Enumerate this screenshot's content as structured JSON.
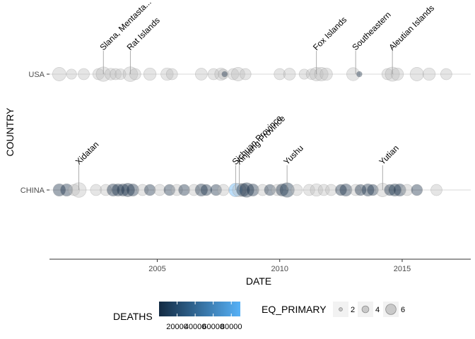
{
  "chart_data": {
    "type": "scatter",
    "title": "",
    "xlabel": "DATE",
    "ylabel": "COUNTRY",
    "xlim": [
      2000.6,
      2017.8
    ],
    "x_ticks": [
      "2005",
      "2010",
      "2015"
    ],
    "x_tick_values": [
      2005,
      2010,
      2015
    ],
    "y_categories": [
      "USA",
      "CHINA"
    ],
    "grid": true,
    "legend_position": "bottom",
    "colors": {
      "low": "#132B43",
      "high": "#56B1F7",
      "grid": "#d9d9d9",
      "neutral_point": "#bebebe"
    },
    "legend": {
      "color_title": "DEATHS",
      "color_breaks": [
        "20000",
        "40000",
        "60000",
        "80000"
      ],
      "color_break_values": [
        20000,
        40000,
        60000,
        80000
      ],
      "color_range": [
        1,
        90000
      ],
      "size_title": "EQ_PRIMARY",
      "size_breaks": [
        "2",
        "4",
        "6"
      ],
      "size_break_values": [
        2,
        4,
        6
      ]
    },
    "annotations": [
      {
        "country": "USA",
        "x": 2002.8,
        "text": "Slana, Mentasta..."
      },
      {
        "country": "USA",
        "x": 2003.9,
        "text": "Rat Islands"
      },
      {
        "country": "USA",
        "x": 2011.5,
        "text": "Fox Islands"
      },
      {
        "country": "USA",
        "x": 2013.1,
        "text": "Southeastern"
      },
      {
        "country": "USA",
        "x": 2014.6,
        "text": "Aleutian Islands"
      },
      {
        "country": "CHINA",
        "x": 2001.8,
        "text": "Xidatan"
      },
      {
        "country": "CHINA",
        "x": 2008.2,
        "text": "Sichuan Province"
      },
      {
        "country": "CHINA",
        "x": 2008.35,
        "text": "Xinjiang Province"
      },
      {
        "country": "CHINA",
        "x": 2010.3,
        "text": "Yushu"
      },
      {
        "country": "CHINA",
        "x": 2014.2,
        "text": "Yutian"
      }
    ],
    "series": [
      {
        "country": "USA",
        "points": [
          {
            "x": 2001.0,
            "size": 6.0,
            "deaths": null
          },
          {
            "x": 2001.5,
            "size": 4.5,
            "deaths": null
          },
          {
            "x": 2002.0,
            "size": 5.0,
            "deaths": null
          },
          {
            "x": 2002.6,
            "size": 5.0,
            "deaths": null
          },
          {
            "x": 2002.8,
            "size": 6.4,
            "deaths": null
          },
          {
            "x": 2003.1,
            "size": 5.2,
            "deaths": null
          },
          {
            "x": 2003.3,
            "size": 5.0,
            "deaths": null
          },
          {
            "x": 2003.5,
            "size": 4.8,
            "deaths": null
          },
          {
            "x": 2003.9,
            "size": 6.5,
            "deaths": null
          },
          {
            "x": 2004.1,
            "size": 5.0,
            "deaths": null
          },
          {
            "x": 2004.7,
            "size": 5.5,
            "deaths": null
          },
          {
            "x": 2005.4,
            "size": 5.5,
            "deaths": null
          },
          {
            "x": 2005.6,
            "size": 5.0,
            "deaths": null
          },
          {
            "x": 2006.8,
            "size": 5.3,
            "deaths": null
          },
          {
            "x": 2007.3,
            "size": 5.0,
            "deaths": null
          },
          {
            "x": 2007.6,
            "size": 5.5,
            "deaths": null
          },
          {
            "x": 2007.7,
            "size": 4.5,
            "deaths": null
          },
          {
            "x": 2007.75,
            "size": 2.5,
            "deaths": 1
          },
          {
            "x": 2008.1,
            "size": 5.0,
            "deaths": null
          },
          {
            "x": 2008.3,
            "size": 6.0,
            "deaths": null
          },
          {
            "x": 2008.6,
            "size": 5.0,
            "deaths": null
          },
          {
            "x": 2010.0,
            "size": 5.0,
            "deaths": null
          },
          {
            "x": 2010.4,
            "size": 5.3,
            "deaths": null
          },
          {
            "x": 2011.0,
            "size": 4.5,
            "deaths": null
          },
          {
            "x": 2011.3,
            "size": 4.8,
            "deaths": null
          },
          {
            "x": 2011.5,
            "size": 6.0,
            "deaths": null
          },
          {
            "x": 2011.7,
            "size": 6.0,
            "deaths": null
          },
          {
            "x": 2011.9,
            "size": 5.5,
            "deaths": null
          },
          {
            "x": 2013.0,
            "size": 5.8,
            "deaths": null
          },
          {
            "x": 2013.25,
            "size": 2.5,
            "deaths": 5
          },
          {
            "x": 2014.4,
            "size": 5.0,
            "deaths": null
          },
          {
            "x": 2014.6,
            "size": 6.3,
            "deaths": null
          },
          {
            "x": 2014.8,
            "size": 5.5,
            "deaths": null
          },
          {
            "x": 2015.6,
            "size": 6.0,
            "deaths": null
          },
          {
            "x": 2016.1,
            "size": 5.5,
            "deaths": null
          },
          {
            "x": 2016.8,
            "size": 5.0,
            "deaths": null
          }
        ]
      },
      {
        "country": "CHINA",
        "points": [
          {
            "x": 2001.0,
            "size": 5.5,
            "deaths": 1
          },
          {
            "x": 2001.3,
            "size": 5.5,
            "deaths": 2
          },
          {
            "x": 2001.6,
            "size": 5.0,
            "deaths": null
          },
          {
            "x": 2001.8,
            "size": 6.5,
            "deaths": null
          },
          {
            "x": 2002.5,
            "size": 5.0,
            "deaths": null
          },
          {
            "x": 2002.9,
            "size": 5.0,
            "deaths": null
          },
          {
            "x": 2003.2,
            "size": 5.5,
            "deaths": 3
          },
          {
            "x": 2003.4,
            "size": 5.5,
            "deaths": 2
          },
          {
            "x": 2003.6,
            "size": 5.5,
            "deaths": 1
          },
          {
            "x": 2003.8,
            "size": 6.0,
            "deaths": 10
          },
          {
            "x": 2004.0,
            "size": 5.5,
            "deaths": 5
          },
          {
            "x": 2004.4,
            "size": 5.0,
            "deaths": null
          },
          {
            "x": 2004.7,
            "size": 5.0,
            "deaths": 2
          },
          {
            "x": 2005.1,
            "size": 5.0,
            "deaths": null
          },
          {
            "x": 2005.5,
            "size": 5.0,
            "deaths": 4
          },
          {
            "x": 2005.8,
            "size": 5.0,
            "deaths": null
          },
          {
            "x": 2006.1,
            "size": 5.0,
            "deaths": 1
          },
          {
            "x": 2006.5,
            "size": 5.0,
            "deaths": null
          },
          {
            "x": 2006.8,
            "size": 5.5,
            "deaths": 2
          },
          {
            "x": 2007.0,
            "size": 5.0,
            "deaths": 3
          },
          {
            "x": 2007.4,
            "size": 5.0,
            "deaths": 1
          },
          {
            "x": 2007.7,
            "size": 5.0,
            "deaths": null
          },
          {
            "x": 2008.2,
            "size": 6.0,
            "deaths": 87587
          },
          {
            "x": 2008.35,
            "size": 6.0,
            "deaths": null
          },
          {
            "x": 2008.5,
            "size": 5.8,
            "deaths": 6
          },
          {
            "x": 2008.65,
            "size": 6.5,
            "deaths": 30
          },
          {
            "x": 2008.9,
            "size": 5.5,
            "deaths": 3
          },
          {
            "x": 2009.3,
            "size": 5.0,
            "deaths": null
          },
          {
            "x": 2009.6,
            "size": 5.0,
            "deaths": 1
          },
          {
            "x": 2009.9,
            "size": 5.0,
            "deaths": null
          },
          {
            "x": 2010.1,
            "size": 5.5,
            "deaths": 3
          },
          {
            "x": 2010.3,
            "size": 6.5,
            "deaths": 2698
          },
          {
            "x": 2010.7,
            "size": 5.0,
            "deaths": null
          },
          {
            "x": 2011.2,
            "size": 5.0,
            "deaths": null
          },
          {
            "x": 2011.5,
            "size": 5.5,
            "deaths": null
          },
          {
            "x": 2011.8,
            "size": 5.0,
            "deaths": null
          },
          {
            "x": 2012.1,
            "size": 5.0,
            "deaths": null
          },
          {
            "x": 2012.5,
            "size": 5.0,
            "deaths": 3
          },
          {
            "x": 2012.7,
            "size": 5.5,
            "deaths": 4
          },
          {
            "x": 2013.1,
            "size": 5.0,
            "deaths": null
          },
          {
            "x": 2013.3,
            "size": 5.0,
            "deaths": 2
          },
          {
            "x": 2013.6,
            "size": 5.5,
            "deaths": 95
          },
          {
            "x": 2013.8,
            "size": 5.0,
            "deaths": 1
          },
          {
            "x": 2014.2,
            "size": 6.0,
            "deaths": null
          },
          {
            "x": 2014.5,
            "size": 5.0,
            "deaths": 2
          },
          {
            "x": 2014.7,
            "size": 5.5,
            "deaths": 617
          },
          {
            "x": 2014.9,
            "size": 5.5,
            "deaths": 1
          },
          {
            "x": 2015.2,
            "size": 5.0,
            "deaths": null
          },
          {
            "x": 2015.6,
            "size": 5.0,
            "deaths": 2
          },
          {
            "x": 2016.4,
            "size": 5.0,
            "deaths": null
          }
        ]
      }
    ]
  }
}
